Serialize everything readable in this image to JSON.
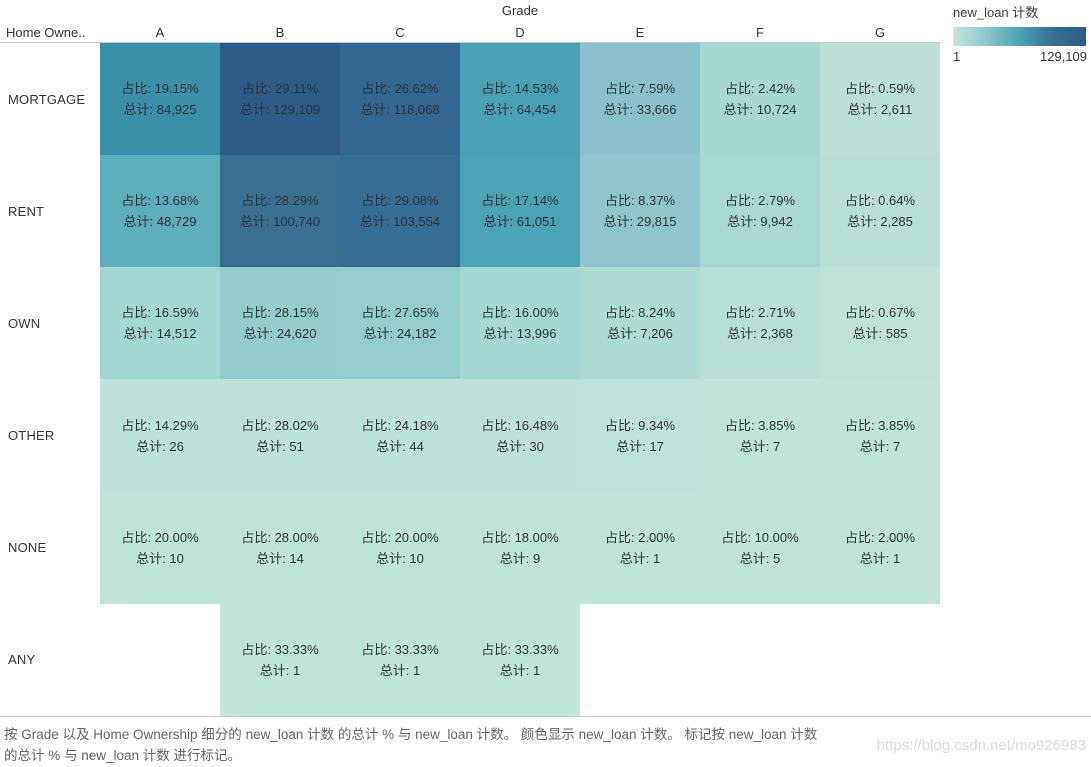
{
  "header": {
    "dimension_title": "Grade",
    "row_dimension_label": "Home Owne..",
    "columns": [
      "A",
      "B",
      "C",
      "D",
      "E",
      "F",
      "G"
    ]
  },
  "labels": {
    "pct_prefix": "占比: ",
    "total_prefix": "总计: "
  },
  "legend": {
    "title": "new_loan 计数",
    "min_label": "1",
    "max_label": "129,109",
    "gradient_stops": [
      "#c8e6df",
      "#8cc6cc",
      "#4aa3b5",
      "#35708f",
      "#2b5c86"
    ]
  },
  "chart_data": {
    "type": "heatmap",
    "column_dimension": "Grade",
    "row_dimension": "Home Ownership",
    "color_measure": "new_loan 计数",
    "color_min": 1,
    "color_max": 129109,
    "columns": [
      "A",
      "B",
      "C",
      "D",
      "E",
      "F",
      "G"
    ],
    "rows": [
      {
        "label": "MORTGAGE",
        "cells": [
          {
            "pct": "19.15%",
            "total": "84,925",
            "color": "#3a8fa9"
          },
          {
            "pct": "29.11%",
            "total": "129,109",
            "color": "#2e5c88"
          },
          {
            "pct": "26.62%",
            "total": "118,068",
            "color": "#316690"
          },
          {
            "pct": "14.53%",
            "total": "64,454",
            "color": "#48a2b4"
          },
          {
            "pct": "7.59%",
            "total": "33,666",
            "color": "#89c2ca"
          },
          {
            "pct": "2.42%",
            "total": "10,724",
            "color": "#a6d7d1"
          },
          {
            "pct": "0.59%",
            "total": "2,611",
            "color": "#bce0d7"
          }
        ]
      },
      {
        "label": "RENT",
        "cells": [
          {
            "pct": "13.68%",
            "total": "48,729",
            "color": "#5badba"
          },
          {
            "pct": "28.29%",
            "total": "100,740",
            "color": "#376f90"
          },
          {
            "pct": "29.08%",
            "total": "103,554",
            "color": "#336d94"
          },
          {
            "pct": "17.14%",
            "total": "61,051",
            "color": "#4aa4b5"
          },
          {
            "pct": "8.37%",
            "total": "29,815",
            "color": "#8fc6cc"
          },
          {
            "pct": "2.79%",
            "total": "9,942",
            "color": "#a9d8d3"
          },
          {
            "pct": "0.64%",
            "total": "2,285",
            "color": "#badfd7"
          }
        ]
      },
      {
        "label": "OWN",
        "cells": [
          {
            "pct": "16.59%",
            "total": "14,512",
            "color": "#a3d7d2"
          },
          {
            "pct": "28.15%",
            "total": "24,620",
            "color": "#92cdcc"
          },
          {
            "pct": "27.65%",
            "total": "24,182",
            "color": "#93cecc"
          },
          {
            "pct": "16.00%",
            "total": "13,996",
            "color": "#a5d8d3"
          },
          {
            "pct": "8.24%",
            "total": "7,206",
            "color": "#aedbd4"
          },
          {
            "pct": "2.71%",
            "total": "2,368",
            "color": "#b9dfd7"
          },
          {
            "pct": "0.67%",
            "total": "585",
            "color": "#bfe2d9"
          }
        ]
      },
      {
        "label": "OTHER",
        "cells": [
          {
            "pct": "14.29%",
            "total": "26",
            "color": "#bee1d9"
          },
          {
            "pct": "28.02%",
            "total": "51",
            "color": "#bee1d9"
          },
          {
            "pct": "24.18%",
            "total": "44",
            "color": "#bee1d9"
          },
          {
            "pct": "16.48%",
            "total": "30",
            "color": "#bee1d9"
          },
          {
            "pct": "9.34%",
            "total": "17",
            "color": "#bfe2da"
          },
          {
            "pct": "3.85%",
            "total": "7",
            "color": "#c0e3da"
          },
          {
            "pct": "3.85%",
            "total": "7",
            "color": "#c0e3da"
          }
        ]
      },
      {
        "label": "NONE",
        "cells": [
          {
            "pct": "20.00%",
            "total": "10",
            "color": "#c0e3da"
          },
          {
            "pct": "28.00%",
            "total": "14",
            "color": "#c0e3da"
          },
          {
            "pct": "20.00%",
            "total": "10",
            "color": "#c0e3da"
          },
          {
            "pct": "18.00%",
            "total": "9",
            "color": "#c0e3da"
          },
          {
            "pct": "2.00%",
            "total": "1",
            "color": "#c0e3da"
          },
          {
            "pct": "10.00%",
            "total": "5",
            "color": "#c0e3da"
          },
          {
            "pct": "2.00%",
            "total": "1",
            "color": "#c0e3da"
          }
        ]
      },
      {
        "label": "ANY",
        "cells": [
          null,
          {
            "pct": "33.33%",
            "total": "1",
            "color": "#c0e3da"
          },
          {
            "pct": "33.33%",
            "total": "1",
            "color": "#c0e3da"
          },
          {
            "pct": "33.33%",
            "total": "1",
            "color": "#c0e3da"
          },
          null,
          null,
          null
        ]
      }
    ]
  },
  "caption": {
    "line1": "按 Grade 以及 Home Ownership 细分的 new_loan 计数 的总计 % 与 new_loan 计数。  颜色显示 new_loan 计数。  标记按 new_loan 计数",
    "line2": "的总计 % 与 new_loan 计数 进行标记。"
  },
  "watermark": "https://blog.csdn.net/mo926983"
}
